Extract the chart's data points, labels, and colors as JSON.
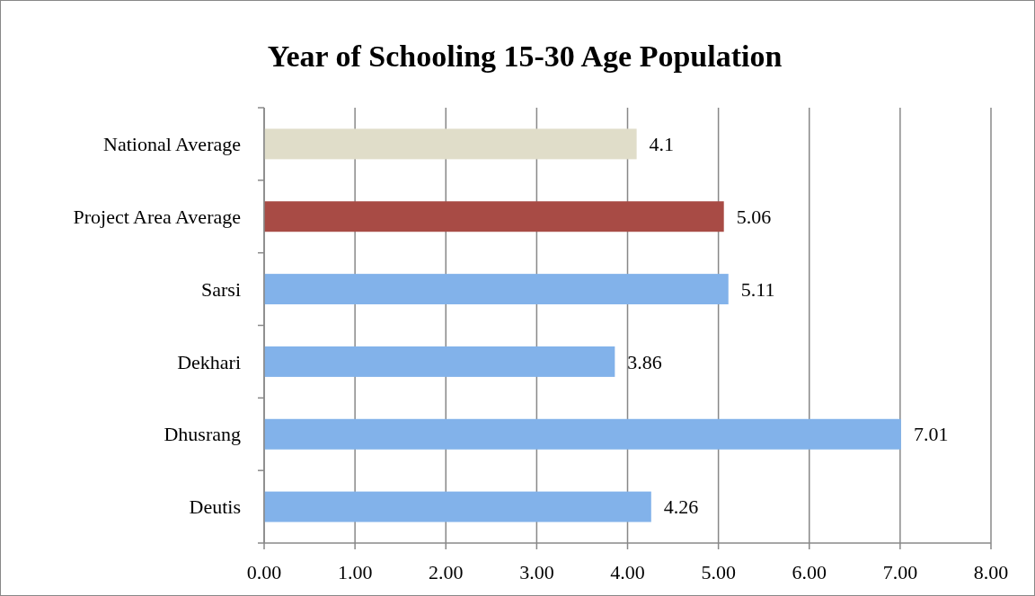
{
  "chart_data": {
    "type": "bar",
    "orientation": "horizontal",
    "title": "Year of Schooling 15-30 Age Population",
    "categories": [
      "National Average",
      "Project Area Average",
      "Sarsi",
      "Dekhari",
      "Dhusrang",
      "Deutis"
    ],
    "values": [
      4.1,
      5.06,
      5.11,
      3.86,
      7.01,
      4.26
    ],
    "colors": [
      "#e0ddc9",
      "#a84b45",
      "#82b2ea",
      "#82b2ea",
      "#82b2ea",
      "#82b2ea"
    ],
    "xlim": [
      0,
      8
    ],
    "xticks": [
      {
        "value": 0,
        "label": "0.00"
      },
      {
        "value": 1,
        "label": "1.00"
      },
      {
        "value": 2,
        "label": "2.00"
      },
      {
        "value": 3,
        "label": "3.00"
      },
      {
        "value": 4,
        "label": "4.00"
      },
      {
        "value": 5,
        "label": "5.00"
      },
      {
        "value": 6,
        "label": "6.00"
      },
      {
        "value": 7,
        "label": "7.00"
      },
      {
        "value": 8,
        "label": "8.00"
      }
    ],
    "grid": "x",
    "data_labels": true
  }
}
